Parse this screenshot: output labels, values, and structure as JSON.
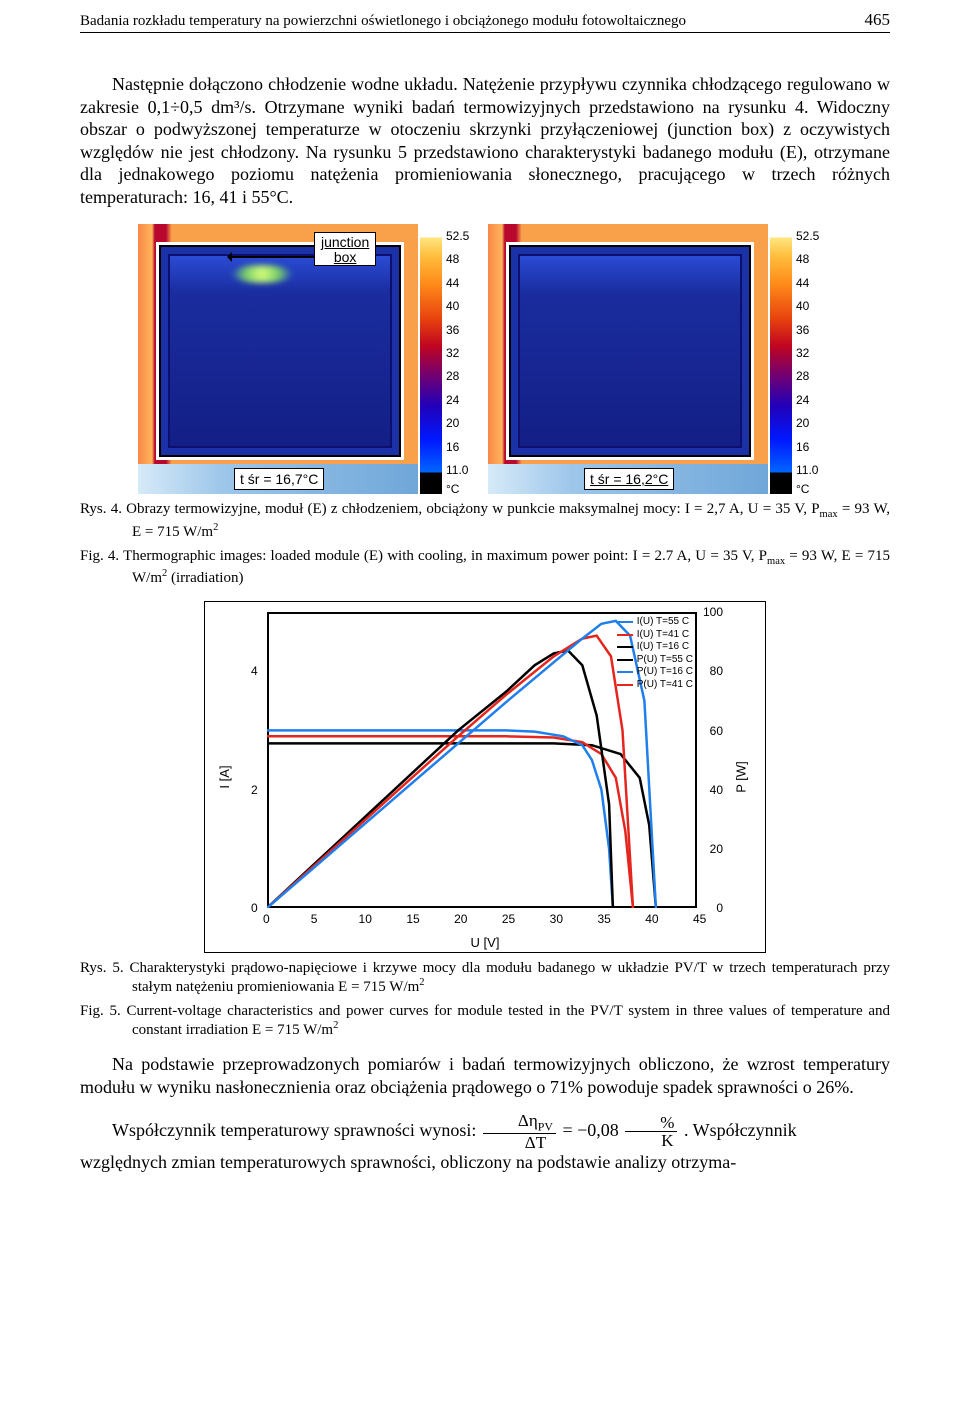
{
  "header": {
    "running_title": "Badania rozkładu temperatury na powierzchni oświetlonego i obciążonego modułu fotowoltaicznego",
    "page_number": "465"
  },
  "paragraph_main": "Następnie dołączono chłodzenie wodne układu. Natężenie przypływu czynnika chłodzącego regulowano w zakresie 0,1÷0,5 dm³/s. Otrzymane wyniki badań termowizyjnych przedstawiono na rysunku 4. Widoczny obszar o podwyższonej temperaturze w otoczeniu skrzynki przyłączeniowej (junction box) z oczywistych względów nie jest chłodzony. Na rysunku 5 przedstawiono charakterystyki badanego modułu (E), otrzymane dla jednakowego poziomu natężenia promieniowania słonecznego, pracującego w trzech różnych temperaturach: 16, 41 i 55°C.",
  "fig4": {
    "junction_box_label": "junction\nbox",
    "left": {
      "t_avg": "t śr = 16,7°C"
    },
    "right": {
      "t_avg": "t śr = 16,2°C"
    },
    "colorbar_max": "52.5",
    "colorbar_ticks": [
      "48",
      "44",
      "40",
      "36",
      "32",
      "28",
      "24",
      "20",
      "16"
    ],
    "colorbar_min": "11.0",
    "colorbar_unit": "°C"
  },
  "caption_rys4": "Rys. 4. Obrazy termowizyjne, moduł (E) z chłodzeniem, obciążony w punkcie maksymalnej mocy: I = 2,7 A, U = 35 V, Pmax = 93 W, E = 715 W/m²",
  "caption_fig4": "Fig. 4. Thermographic images: loaded module (E) with cooling, in maximum power point: I = 2.7 A, U = 35 V, Pmax = 93 W, E = 715 W/m² (irradiation)",
  "fig5": {
    "x_label": "U [V]",
    "y_label_left": "I [A]",
    "y_label_right": "P [W]",
    "x_ticks": [
      "0",
      "5",
      "10",
      "15",
      "20",
      "25",
      "30",
      "35",
      "40",
      "45"
    ],
    "y_left_ticks": [
      "0",
      "2",
      "4"
    ],
    "y_right_ticks": [
      "0",
      "20",
      "40",
      "60",
      "80",
      "100"
    ],
    "x_max": 45,
    "i_max": 5,
    "p_max": 100,
    "legend": [
      {
        "color": "#1f7fec",
        "label": "I(U) T=55 C"
      },
      {
        "color": "#e5261e",
        "label": "I(U) T=41 C"
      },
      {
        "color": "#000000",
        "label": "I(U) T=16 C"
      },
      {
        "color": "#000000",
        "label": "P(U) T=55 C"
      },
      {
        "color": "#1f7fec",
        "label": "P(U) T=16 C"
      },
      {
        "color": "#e5261e",
        "label": "P(U) T=41 C"
      }
    ],
    "series": {
      "I55": {
        "color": "#1f7fec",
        "pts": [
          [
            0,
            3.0
          ],
          [
            5,
            3.0
          ],
          [
            10,
            3.0
          ],
          [
            15,
            3.0
          ],
          [
            20,
            3.0
          ],
          [
            25,
            3.0
          ],
          [
            28,
            2.98
          ],
          [
            31,
            2.9
          ],
          [
            33,
            2.75
          ],
          [
            34,
            2.5
          ],
          [
            35,
            2.0
          ],
          [
            35.8,
            1.0
          ],
          [
            36.2,
            0
          ]
        ]
      },
      "I41": {
        "color": "#e5261e",
        "pts": [
          [
            0,
            2.9
          ],
          [
            5,
            2.9
          ],
          [
            10,
            2.9
          ],
          [
            15,
            2.9
          ],
          [
            20,
            2.9
          ],
          [
            25,
            2.9
          ],
          [
            30,
            2.88
          ],
          [
            33,
            2.8
          ],
          [
            35,
            2.6
          ],
          [
            36.5,
            2.2
          ],
          [
            37.5,
            1.3
          ],
          [
            38.3,
            0
          ]
        ]
      },
      "I16": {
        "color": "#000000",
        "pts": [
          [
            0,
            2.78
          ],
          [
            5,
            2.78
          ],
          [
            10,
            2.78
          ],
          [
            15,
            2.78
          ],
          [
            20,
            2.78
          ],
          [
            25,
            2.78
          ],
          [
            30,
            2.78
          ],
          [
            34,
            2.75
          ],
          [
            37,
            2.6
          ],
          [
            39,
            2.2
          ],
          [
            40,
            1.4
          ],
          [
            40.7,
            0
          ]
        ]
      },
      "P55": {
        "color": "#000000",
        "pts": [
          [
            0,
            0
          ],
          [
            5,
            15
          ],
          [
            10,
            30
          ],
          [
            15,
            45
          ],
          [
            20,
            60
          ],
          [
            25,
            73
          ],
          [
            28,
            82
          ],
          [
            30,
            86
          ],
          [
            31.5,
            87
          ],
          [
            33,
            82
          ],
          [
            34.5,
            65
          ],
          [
            35.8,
            35
          ],
          [
            36.2,
            0
          ]
        ]
      },
      "P41": {
        "color": "#e5261e",
        "pts": [
          [
            0,
            0
          ],
          [
            5,
            14.5
          ],
          [
            10,
            29
          ],
          [
            15,
            43.5
          ],
          [
            20,
            58
          ],
          [
            25,
            72
          ],
          [
            30,
            85
          ],
          [
            33,
            91
          ],
          [
            34.5,
            92
          ],
          [
            36,
            85
          ],
          [
            37.2,
            60
          ],
          [
            38.3,
            0
          ]
        ]
      },
      "P16": {
        "color": "#1f7fec",
        "pts": [
          [
            0,
            0
          ],
          [
            5,
            13.9
          ],
          [
            10,
            27.8
          ],
          [
            15,
            41.7
          ],
          [
            20,
            55.6
          ],
          [
            25,
            69.5
          ],
          [
            30,
            83
          ],
          [
            33,
            91
          ],
          [
            35,
            96
          ],
          [
            36.5,
            97
          ],
          [
            38,
            92
          ],
          [
            39.5,
            70
          ],
          [
            40.7,
            0
          ]
        ]
      }
    }
  },
  "caption_rys5": "Rys. 5. Charakterystyki prądowo-napięciowe i krzywe mocy dla modułu badanego w układzie PV/T w trzech temperaturach przy stałym natężeniu promieniowania E = 715 W/m²",
  "caption_fig5": "Fig. 5. Current-voltage characteristics and power curves for module tested in the PV/T system in three values of temperature and constant irradiation E = 715 W/m²",
  "para_after_fig5": "Na podstawie przeprowadzonych pomiarów i badań termowizyjnych obliczono, że wzrost temperatury modułu w wyniku nasłonecznienia oraz obciążenia prądowego o 71% powoduje spadek sprawności o 26%.",
  "coeff": {
    "lead": "Współczynnik temperaturowy sprawności wynosi: ",
    "frac_top": "Δη",
    "frac_top_sub": "PV",
    "frac_bottom": "ΔT",
    "equals": " = −0,08 ",
    "pct": "%",
    "K": "K",
    "trail": ". Współczynnik"
  },
  "para_tail": "względnych zmian temperaturowych sprawności, obliczony na podstawie analizy otrzyma-"
}
